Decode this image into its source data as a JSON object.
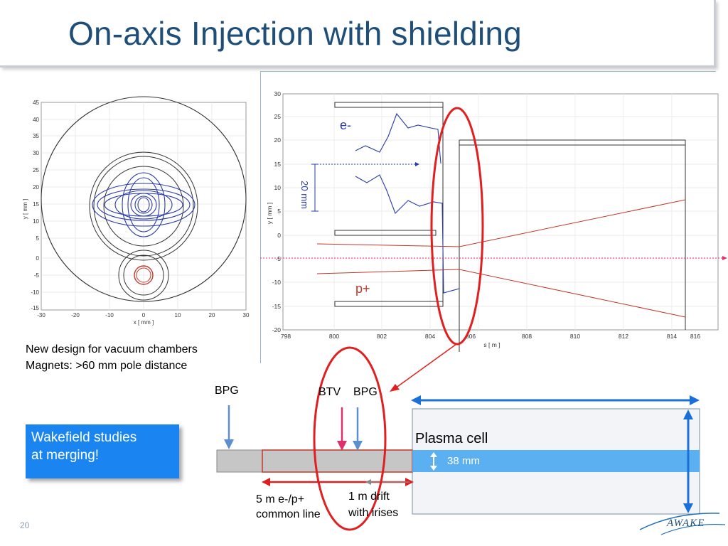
{
  "slide": {
    "title": "On-axis Injection with shielding",
    "page_number": "20"
  },
  "left_plot": {
    "ylabel": "y [ mm ]",
    "xlabel": "x [ mm ]",
    "y_ticks": [
      "45",
      "40",
      "35",
      "30",
      "25",
      "20",
      "15",
      "10",
      "5",
      "0",
      "-5",
      "-10",
      "-15"
    ],
    "x_ticks": [
      "-30",
      "-20",
      "-10",
      "0",
      "10",
      "20",
      "30"
    ]
  },
  "right_plot": {
    "ylabel": "y [ mm ]",
    "xlabel": "s [ m ]",
    "y_ticks": [
      "30",
      "25",
      "20",
      "15",
      "10",
      "5",
      "0",
      "-5",
      "-10",
      "-15",
      "-20"
    ],
    "x_ticks": [
      "798",
      "800",
      "802",
      "804",
      "806",
      "808",
      "810",
      "812",
      "814",
      "816"
    ],
    "label_electron": "e-",
    "label_proton": "p+",
    "dim_label": "20 mm"
  },
  "design_notes": {
    "line1": "New design for vacuum chambers",
    "line2": "Magnets:  >60 mm pole distance"
  },
  "callout": {
    "line1": "Wakefield studies",
    "line2": "at merging!"
  },
  "beamline": {
    "bpg1": "BPG",
    "btv": "BTV",
    "bpg2": "BPG",
    "plasma_cell": "Plasma cell",
    "plasma_dim": "38 mm",
    "common_line_1": "5 m e-/p+",
    "common_line_2": "common line",
    "drift_1": "1 m drift",
    "drift_2": "with irises"
  },
  "logo": {
    "text": "AWAKE"
  }
}
